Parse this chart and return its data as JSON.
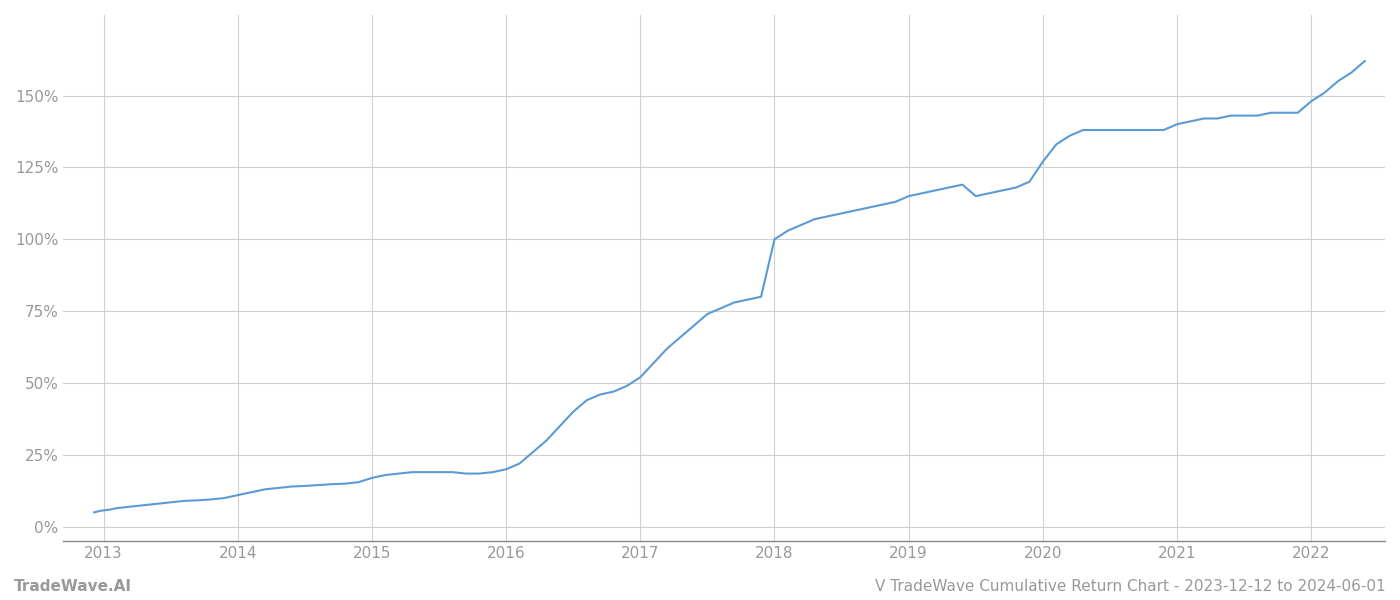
{
  "title": "V TradeWave Cumulative Return Chart - 2023-12-12 to 2024-06-01",
  "watermark": "TradeWave.AI",
  "line_color": "#5b9bd5",
  "background_color": "#ffffff",
  "grid_color": "#d0d0d0",
  "x_years": [
    2013,
    2014,
    2015,
    2016,
    2017,
    2018,
    2019,
    2020,
    2021,
    2022
  ],
  "data_x": [
    2012.93,
    2012.97,
    2013.05,
    2013.1,
    2013.2,
    2013.3,
    2013.4,
    2013.5,
    2013.6,
    2013.7,
    2013.8,
    2013.9,
    2014.0,
    2014.1,
    2014.2,
    2014.3,
    2014.4,
    2014.5,
    2014.6,
    2014.7,
    2014.8,
    2014.9,
    2015.0,
    2015.1,
    2015.2,
    2015.3,
    2015.4,
    2015.5,
    2015.6,
    2015.7,
    2015.8,
    2015.9,
    2016.0,
    2016.1,
    2016.2,
    2016.3,
    2016.4,
    2016.5,
    2016.6,
    2016.7,
    2016.8,
    2016.9,
    2017.0,
    2017.1,
    2017.2,
    2017.3,
    2017.4,
    2017.5,
    2017.6,
    2017.7,
    2017.8,
    2017.9,
    2018.0,
    2018.1,
    2018.2,
    2018.3,
    2018.4,
    2018.5,
    2018.6,
    2018.7,
    2018.8,
    2018.9,
    2019.0,
    2019.1,
    2019.2,
    2019.3,
    2019.4,
    2019.5,
    2019.6,
    2019.7,
    2019.8,
    2019.9,
    2020.0,
    2020.1,
    2020.2,
    2020.3,
    2020.4,
    2020.5,
    2020.6,
    2020.7,
    2020.8,
    2020.9,
    2021.0,
    2021.1,
    2021.2,
    2021.3,
    2021.4,
    2021.5,
    2021.6,
    2021.7,
    2021.8,
    2021.9,
    2022.0,
    2022.1,
    2022.2,
    2022.3,
    2022.4
  ],
  "data_y": [
    5,
    5.5,
    6,
    6.5,
    7,
    7.5,
    8,
    8.5,
    9,
    9.2,
    9.5,
    10,
    11,
    12,
    13,
    13.5,
    14,
    14.2,
    14.5,
    14.8,
    15,
    15.5,
    17,
    18,
    18.5,
    19,
    19,
    19,
    19,
    18.5,
    18.5,
    19,
    20,
    22,
    26,
    30,
    35,
    40,
    44,
    46,
    47,
    49,
    52,
    57,
    62,
    66,
    70,
    74,
    76,
    78,
    79,
    80,
    100,
    103,
    105,
    107,
    108,
    109,
    110,
    111,
    112,
    113,
    115,
    116,
    117,
    118,
    119,
    115,
    116,
    117,
    118,
    120,
    127,
    133,
    136,
    138,
    138,
    138,
    138,
    138,
    138,
    138,
    140,
    141,
    142,
    142,
    143,
    143,
    143,
    144,
    144,
    144,
    148,
    151,
    155,
    158,
    162
  ],
  "yticks": [
    0,
    25,
    50,
    75,
    100,
    125,
    150
  ],
  "ytick_labels": [
    "0%",
    "25%",
    "50%",
    "75%",
    "100%",
    "125%",
    "150%"
  ],
  "ylim": [
    -5,
    178
  ],
  "xlim": [
    2012.7,
    2022.55
  ],
  "tick_color": "#999999",
  "axis_color": "#888888",
  "title_fontsize": 11,
  "watermark_fontsize": 11,
  "tick_fontsize": 11,
  "line_width": 1.5
}
